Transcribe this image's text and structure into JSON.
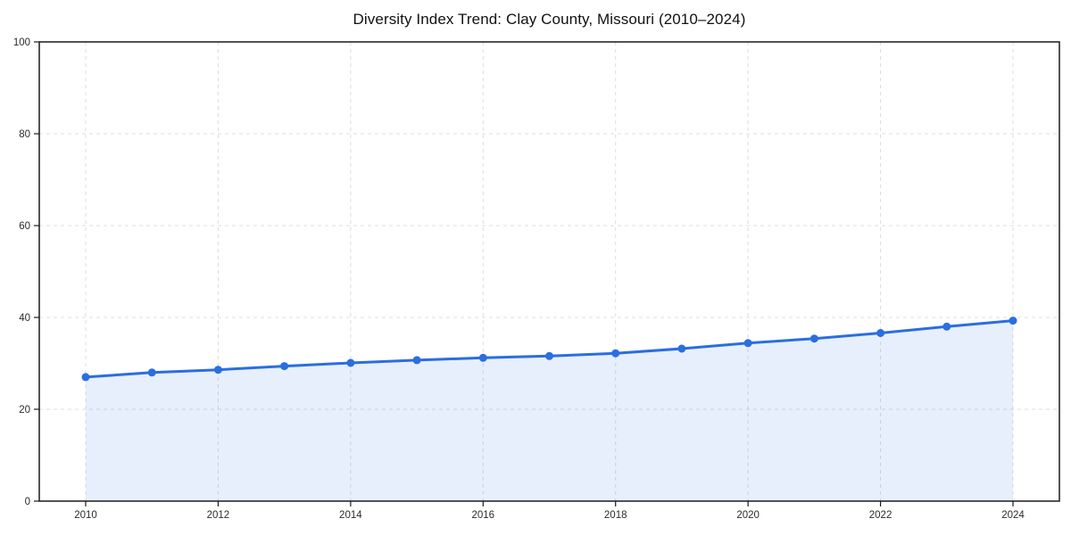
{
  "chart_data": {
    "type": "line",
    "title": "Diversity Index Trend: Clay County, Missouri (2010–2024)",
    "x": [
      2010,
      2011,
      2012,
      2013,
      2014,
      2015,
      2016,
      2017,
      2018,
      2019,
      2020,
      2021,
      2022,
      2023,
      2024
    ],
    "series": [
      {
        "name": "Diversity Index",
        "values": [
          27.0,
          28.0,
          28.6,
          29.4,
          30.1,
          30.7,
          31.2,
          31.6,
          32.2,
          33.2,
          34.4,
          35.4,
          36.6,
          38.0,
          39.3
        ]
      }
    ],
    "xlabel": "",
    "ylabel": "",
    "xlim": [
      2010,
      2024
    ],
    "ylim": [
      0,
      100
    ],
    "x_ticks": [
      2010,
      2012,
      2014,
      2016,
      2018,
      2020,
      2022,
      2024
    ],
    "y_ticks": [
      0,
      20,
      40,
      60,
      80,
      100
    ],
    "grid": true,
    "grid_style": "dashed",
    "legend": "none",
    "area_fill": true,
    "markers": true,
    "colors": {
      "line": "#2a6ee0",
      "marker": "#2a6ee0",
      "fill": "#2a6ee0",
      "fill_opacity": "0.11",
      "grid": "#dcdcdc",
      "axis": "#1a1a1a",
      "tick_label": "#2b2b2b",
      "title": "#111111",
      "background": "#ffffff"
    }
  }
}
